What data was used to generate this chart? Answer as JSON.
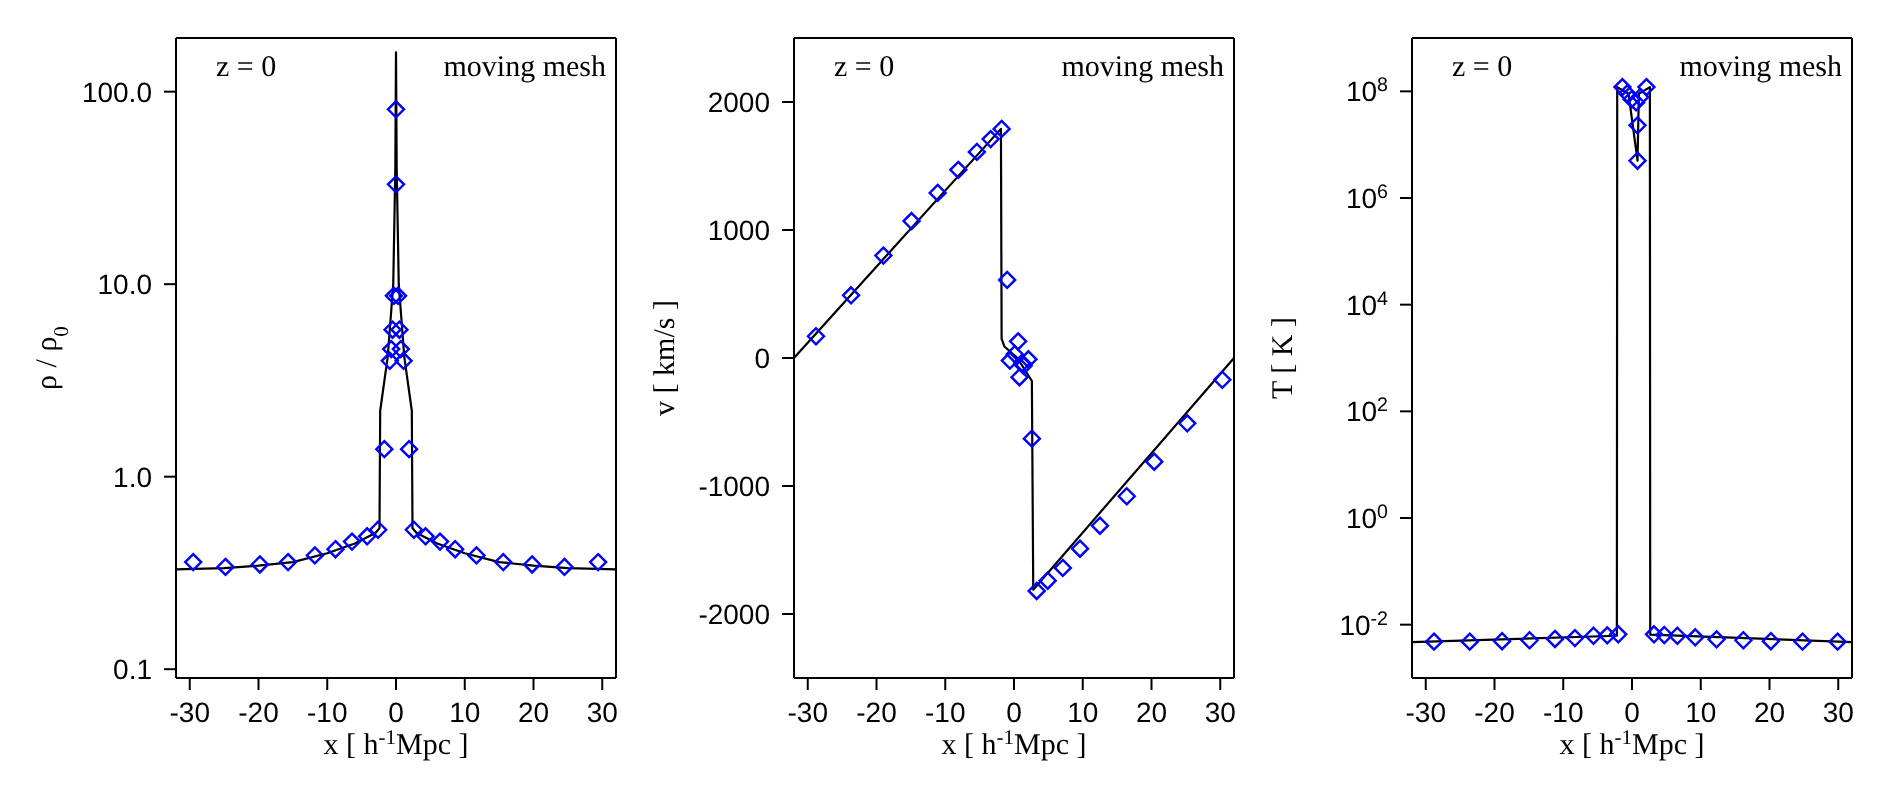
{
  "chart_data": [
    {
      "type": "line",
      "xlabel": "x  [ h$^{-1}$Mpc ]",
      "ylabel": "ρ / ρ$_{0}$",
      "log": "y",
      "legend": false,
      "xlim": [
        -32,
        32
      ],
      "xticks": [
        -30,
        -20,
        -10,
        0,
        10,
        20,
        30
      ],
      "ylim": [
        0.09,
        190
      ],
      "yticks": [
        {
          "value": 0.1,
          "label": "0.1"
        },
        {
          "value": 1,
          "label": "1.0"
        },
        {
          "value": 10,
          "label": "10.0"
        },
        {
          "value": 100,
          "label": "100.0"
        }
      ],
      "annotations": [
        "z = 0",
        "moving mesh"
      ],
      "series": [
        {
          "color": "#000000",
          "line_style": "solid",
          "marker": "none",
          "x": [
            -32,
            -25,
            -20,
            -15,
            -10,
            -6,
            -3,
            -2.4,
            -2.3,
            -1.2,
            -0.4,
            -0.1,
            0,
            0.1,
            0.4,
            1.2,
            2.3,
            2.4,
            3,
            6,
            10,
            15,
            20,
            25,
            32
          ],
          "values": [
            0.33,
            0.335,
            0.345,
            0.36,
            0.4,
            0.45,
            0.51,
            0.54,
            2.2,
            4.2,
            10,
            40,
            160,
            40,
            10,
            4.2,
            2.2,
            0.54,
            0.51,
            0.45,
            0.4,
            0.36,
            0.345,
            0.335,
            0.33
          ]
        },
        {
          "type": "scatter",
          "color": "#0000ff",
          "marker": "diamond",
          "x": [
            -29.5,
            -24.8,
            -19.8,
            -15.7,
            -11.8,
            -8.8,
            -6.4,
            -4.2,
            -2.6,
            -1.7,
            -0.9,
            -0.7,
            -0.5,
            -0.3,
            0,
            0,
            0.3,
            0.5,
            0.7,
            1.1,
            1.9,
            2.6,
            4.3,
            6.4,
            8.6,
            11.7,
            15.6,
            19.8,
            24.5,
            29.4
          ],
          "values": [
            0.36,
            0.34,
            0.35,
            0.36,
            0.39,
            0.42,
            0.46,
            0.49,
            0.53,
            1.39,
            4.0,
            4.6,
            5.8,
            8.7,
            33,
            81,
            8.7,
            5.8,
            4.6,
            4.0,
            1.39,
            0.53,
            0.49,
            0.46,
            0.42,
            0.39,
            0.36,
            0.35,
            0.34,
            0.36
          ]
        }
      ]
    },
    {
      "type": "line",
      "xlabel": "x  [ h$^{-1}$Mpc ]",
      "ylabel": "v  [ km/s ]",
      "legend": false,
      "xlim": [
        -32,
        32
      ],
      "xticks": [
        -30,
        -20,
        -10,
        0,
        10,
        20,
        30
      ],
      "ylim": [
        -2500,
        2500
      ],
      "yticks": [
        -2000,
        -1000,
        0,
        1000,
        2000
      ],
      "annotations": [
        "z = 0",
        "moving mesh"
      ],
      "series": [
        {
          "color": "#000000",
          "line_style": "solid",
          "marker": "none",
          "x": [
            -32,
            -1.9,
            -1.8,
            -1.4,
            0.5,
            2.6,
            2.8,
            32
          ],
          "values": [
            0,
            1790,
            150,
            90,
            0,
            -180,
            -1810,
            0
          ]
        },
        {
          "type": "scatter",
          "color": "#0000ff",
          "marker": "diamond",
          "x": [
            -28.8,
            -23.7,
            -19,
            -14.9,
            -11.1,
            -8.1,
            -5.4,
            -3.4,
            -1.8,
            -1,
            -0.6,
            0.6,
            0.1,
            0.8,
            1.4,
            2.1,
            1.2,
            2.6,
            3.3,
            4.9,
            7.1,
            9.6,
            12.5,
            16.4,
            20.4,
            25.2,
            30.3
          ],
          "values": [
            170,
            490,
            800,
            1070,
            1290,
            1470,
            1610,
            1710,
            1790,
            610,
            -20,
            130,
            30,
            -150,
            -60,
            -10,
            -40,
            -630,
            -1820,
            -1740,
            -1640,
            -1490,
            -1310,
            -1080,
            -810,
            -510,
            -170
          ]
        }
      ]
    },
    {
      "type": "line",
      "xlabel": "x  [ h$^{-1}$Mpc ]",
      "ylabel": "T  [ K ]",
      "log": "y",
      "legend": false,
      "xlim": [
        -32,
        32
      ],
      "xticks": [
        -30,
        -20,
        -10,
        0,
        10,
        20,
        30
      ],
      "ylim": [
        0.001,
        1000000000
      ],
      "yticks": [
        {
          "value": 0.01,
          "label": "10$^{-2}$"
        },
        {
          "value": 1,
          "label": "10$^{0}$"
        },
        {
          "value": 100,
          "label": "10$^{2}$"
        },
        {
          "value": 10000,
          "label": "10$^{4}$"
        },
        {
          "value": 1000000,
          "label": "10$^{6}$"
        },
        {
          "value": 100000000,
          "label": "10$^{8}$"
        }
      ],
      "annotations": [
        "z = 0",
        "moving mesh"
      ],
      "series": [
        {
          "color": "#000000",
          "line_style": "solid",
          "marker": "none",
          "x": [
            -32,
            -2.2,
            -2.15,
            -0.5,
            0.8,
            1,
            2.6,
            2.65,
            32
          ],
          "values": [
            0.0047,
            0.0062,
            120000000,
            90000000,
            5000000,
            90000000,
            120000000,
            0.0065,
            0.0047
          ]
        },
        {
          "type": "scatter",
          "color": "#0000ff",
          "marker": "diamond",
          "x": [
            -28.8,
            -23.6,
            -18.9,
            -14.9,
            -11.2,
            -8.3,
            -5.6,
            -3.6,
            -2,
            3.2,
            4.7,
            6.6,
            9.2,
            12.3,
            16.2,
            20.2,
            24.8,
            29.9,
            -1.4,
            -0.7,
            -0.05,
            0.6,
            1.2,
            2.1,
            0.8,
            0.8
          ],
          "values": [
            0.0048,
            0.0048,
            0.0049,
            0.0051,
            0.0054,
            0.0056,
            0.0062,
            0.0063,
            0.0066,
            0.0066,
            0.0064,
            0.0062,
            0.0058,
            0.0053,
            0.0051,
            0.0049,
            0.0048,
            0.0048,
            120000000,
            91000000,
            71000000,
            62000000,
            78000000,
            120000000,
            23000000,
            5000000
          ]
        }
      ]
    }
  ]
}
